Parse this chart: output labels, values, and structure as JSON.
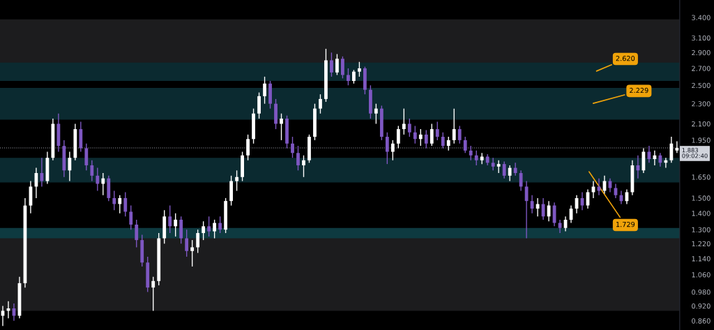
{
  "chart_data": {
    "type": "candlestick",
    "categories": [
      null,
      null,
      null,
      null,
      null,
      null,
      null,
      null,
      null,
      null,
      null,
      null,
      null,
      null,
      null,
      null,
      null,
      null,
      null,
      null,
      null,
      null,
      null,
      null,
      null,
      null,
      null,
      null,
      null,
      null,
      null,
      null,
      null,
      null,
      null,
      null,
      null,
      null,
      null,
      null,
      null,
      null,
      null,
      null,
      null,
      null,
      null,
      null,
      null,
      null,
      null,
      null,
      null,
      null,
      null,
      null,
      null,
      null,
      null,
      null,
      null,
      null,
      null,
      null,
      null,
      null,
      null,
      null,
      null,
      null,
      null,
      null,
      null,
      null,
      null,
      null,
      null,
      null,
      null,
      null,
      null,
      null,
      null,
      null,
      null,
      null,
      null,
      null,
      null,
      null,
      null,
      null,
      null,
      null,
      null,
      null,
      null,
      null,
      null,
      null,
      null,
      null,
      null,
      null,
      null,
      null,
      null,
      null,
      null,
      null,
      null,
      null,
      null,
      null,
      null,
      null,
      null,
      null,
      null,
      null,
      null,
      null
    ],
    "ohlc": [
      [
        0.88,
        0.92,
        0.84,
        0.9
      ],
      [
        0.9,
        0.94,
        0.87,
        0.91
      ],
      [
        0.91,
        0.93,
        0.86,
        0.88
      ],
      [
        0.88,
        1.05,
        0.87,
        1.02
      ],
      [
        1.02,
        1.5,
        1.0,
        1.45
      ],
      [
        1.45,
        1.62,
        1.4,
        1.58
      ],
      [
        1.58,
        1.72,
        1.5,
        1.68
      ],
      [
        1.68,
        1.8,
        1.58,
        1.62
      ],
      [
        1.62,
        1.85,
        1.6,
        1.8
      ],
      [
        1.8,
        2.15,
        1.78,
        2.1
      ],
      [
        2.1,
        2.2,
        1.85,
        1.9
      ],
      [
        1.9,
        1.95,
        1.65,
        1.7
      ],
      [
        1.7,
        1.85,
        1.62,
        1.8
      ],
      [
        1.8,
        2.1,
        1.78,
        2.05
      ],
      [
        2.05,
        2.12,
        1.85,
        1.88
      ],
      [
        1.88,
        1.92,
        1.7,
        1.74
      ],
      [
        1.74,
        1.78,
        1.62,
        1.66
      ],
      [
        1.66,
        1.72,
        1.55,
        1.6
      ],
      [
        1.6,
        1.68,
        1.52,
        1.64
      ],
      [
        1.64,
        1.66,
        1.48,
        1.5
      ],
      [
        1.5,
        1.55,
        1.42,
        1.46
      ],
      [
        1.46,
        1.52,
        1.4,
        1.5
      ],
      [
        1.5,
        1.54,
        1.38,
        1.41
      ],
      [
        1.41,
        1.45,
        1.3,
        1.33
      ],
      [
        1.33,
        1.36,
        1.2,
        1.24
      ],
      [
        1.24,
        1.27,
        1.1,
        1.12
      ],
      [
        1.12,
        1.15,
        0.98,
        1.0
      ],
      [
        1.0,
        1.05,
        0.9,
        1.03
      ],
      [
        1.03,
        1.28,
        1.01,
        1.25
      ],
      [
        1.25,
        1.42,
        1.22,
        1.38
      ],
      [
        1.38,
        1.45,
        1.28,
        1.32
      ],
      [
        1.32,
        1.4,
        1.26,
        1.36
      ],
      [
        1.36,
        1.38,
        1.22,
        1.25
      ],
      [
        1.25,
        1.3,
        1.15,
        1.18
      ],
      [
        1.18,
        1.24,
        1.1,
        1.2
      ],
      [
        1.2,
        1.3,
        1.17,
        1.28
      ],
      [
        1.28,
        1.35,
        1.24,
        1.32
      ],
      [
        1.32,
        1.38,
        1.26,
        1.29
      ],
      [
        1.29,
        1.36,
        1.25,
        1.34
      ],
      [
        1.34,
        1.38,
        1.28,
        1.3
      ],
      [
        1.3,
        1.5,
        1.28,
        1.48
      ],
      [
        1.48,
        1.66,
        1.45,
        1.62
      ],
      [
        1.62,
        1.7,
        1.55,
        1.65
      ],
      [
        1.65,
        1.85,
        1.62,
        1.82
      ],
      [
        1.82,
        2.0,
        1.78,
        1.96
      ],
      [
        1.96,
        2.25,
        1.92,
        2.2
      ],
      [
        2.2,
        2.42,
        2.15,
        2.38
      ],
      [
        2.38,
        2.6,
        2.3,
        2.52
      ],
      [
        2.52,
        2.55,
        2.25,
        2.3
      ],
      [
        2.3,
        2.35,
        2.05,
        2.1
      ],
      [
        2.1,
        2.2,
        1.95,
        2.15
      ],
      [
        2.15,
        2.18,
        1.88,
        1.92
      ],
      [
        1.92,
        1.98,
        1.8,
        1.84
      ],
      [
        1.84,
        1.9,
        1.7,
        1.74
      ],
      [
        1.74,
        1.82,
        1.65,
        1.78
      ],
      [
        1.78,
        2.0,
        1.76,
        1.98
      ],
      [
        1.98,
        2.3,
        1.95,
        2.25
      ],
      [
        2.25,
        2.4,
        2.2,
        2.35
      ],
      [
        2.35,
        2.95,
        2.32,
        2.8
      ],
      [
        2.8,
        2.9,
        2.6,
        2.65
      ],
      [
        2.65,
        2.88,
        2.62,
        2.82
      ],
      [
        2.82,
        2.85,
        2.58,
        2.62
      ],
      [
        2.62,
        2.7,
        2.5,
        2.55
      ],
      [
        2.55,
        2.68,
        2.52,
        2.66
      ],
      [
        2.66,
        2.78,
        2.6,
        2.7
      ],
      [
        2.7,
        2.72,
        2.4,
        2.45
      ],
      [
        2.45,
        2.5,
        2.15,
        2.2
      ],
      [
        2.2,
        2.3,
        2.1,
        2.25
      ],
      [
        2.25,
        2.28,
        1.95,
        1.98
      ],
      [
        1.98,
        2.02,
        1.75,
        1.85
      ],
      [
        1.85,
        1.95,
        1.78,
        1.92
      ],
      [
        1.92,
        2.08,
        1.88,
        2.05
      ],
      [
        2.05,
        2.25,
        2.0,
        2.1
      ],
      [
        2.1,
        2.15,
        1.98,
        2.02
      ],
      [
        2.02,
        2.08,
        1.92,
        1.96
      ],
      [
        1.96,
        2.05,
        1.9,
        2.0
      ],
      [
        2.0,
        2.04,
        1.88,
        1.92
      ],
      [
        1.92,
        2.1,
        1.9,
        2.05
      ],
      [
        2.05,
        2.12,
        1.95,
        1.98
      ],
      [
        1.98,
        2.02,
        1.88,
        1.9
      ],
      [
        1.9,
        1.98,
        1.86,
        1.95
      ],
      [
        1.95,
        2.25,
        1.92,
        2.05
      ],
      [
        2.05,
        2.08,
        1.92,
        1.95
      ],
      [
        1.95,
        1.98,
        1.84,
        1.86
      ],
      [
        1.86,
        1.9,
        1.78,
        1.82
      ],
      [
        1.82,
        1.86,
        1.74,
        1.78
      ],
      [
        1.78,
        1.84,
        1.75,
        1.81
      ],
      [
        1.81,
        1.83,
        1.74,
        1.76
      ],
      [
        1.76,
        1.8,
        1.7,
        1.73
      ],
      [
        1.73,
        1.78,
        1.68,
        1.75
      ],
      [
        1.75,
        1.77,
        1.64,
        1.66
      ],
      [
        1.66,
        1.74,
        1.62,
        1.72
      ],
      [
        1.72,
        1.76,
        1.66,
        1.68
      ],
      [
        1.68,
        1.7,
        1.55,
        1.58
      ],
      [
        1.58,
        1.62,
        1.25,
        1.48
      ],
      [
        1.48,
        1.52,
        1.4,
        1.43
      ],
      [
        1.43,
        1.5,
        1.38,
        1.46
      ],
      [
        1.46,
        1.5,
        1.36,
        1.38
      ],
      [
        1.38,
        1.48,
        1.35,
        1.45
      ],
      [
        1.45,
        1.47,
        1.32,
        1.34
      ],
      [
        1.34,
        1.36,
        1.28,
        1.31
      ],
      [
        1.31,
        1.38,
        1.29,
        1.36
      ],
      [
        1.36,
        1.45,
        1.34,
        1.43
      ],
      [
        1.43,
        1.52,
        1.4,
        1.5
      ],
      [
        1.5,
        1.54,
        1.42,
        1.45
      ],
      [
        1.45,
        1.56,
        1.43,
        1.54
      ],
      [
        1.54,
        1.62,
        1.5,
        1.58
      ],
      [
        1.58,
        1.64,
        1.52,
        1.55
      ],
      [
        1.55,
        1.66,
        1.53,
        1.62
      ],
      [
        1.62,
        1.64,
        1.54,
        1.57
      ],
      [
        1.57,
        1.6,
        1.5,
        1.52
      ],
      [
        1.52,
        1.55,
        1.46,
        1.48
      ],
      [
        1.48,
        1.56,
        1.46,
        1.54
      ],
      [
        1.54,
        1.78,
        1.52,
        1.74
      ],
      [
        1.74,
        1.82,
        1.64,
        1.7
      ],
      [
        1.7,
        1.88,
        1.68,
        1.85
      ],
      [
        1.85,
        1.9,
        1.76,
        1.79
      ],
      [
        1.79,
        1.86,
        1.74,
        1.82
      ],
      [
        1.82,
        1.84,
        1.73,
        1.76
      ],
      [
        1.76,
        1.8,
        1.72,
        1.78
      ],
      [
        1.78,
        1.98,
        1.76,
        1.92
      ],
      [
        1.86,
        1.94,
        1.84,
        1.883
      ]
    ],
    "colors": [
      "#ffffff",
      "#ffffff",
      "#7e57c2",
      "#ffffff",
      "#ffffff",
      "#ffffff",
      "#ffffff",
      "#7e57c2",
      "#ffffff",
      "#ffffff",
      "#7e57c2",
      "#7e57c2",
      "#ffffff",
      "#ffffff",
      "#7e57c2",
      "#7e57c2",
      "#7e57c2",
      "#7e57c2",
      "#ffffff",
      "#7e57c2",
      "#7e57c2",
      "#ffffff",
      "#7e57c2",
      "#7e57c2",
      "#7e57c2",
      "#7e57c2",
      "#7e57c2",
      "#ffffff",
      "#ffffff",
      "#ffffff",
      "#7e57c2",
      "#ffffff",
      "#7e57c2",
      "#7e57c2",
      "#ffffff",
      "#ffffff",
      "#ffffff",
      "#7e57c2",
      "#ffffff",
      "#7e57c2",
      "#ffffff",
      "#ffffff",
      "#ffffff",
      "#ffffff",
      "#ffffff",
      "#ffffff",
      "#ffffff",
      "#ffffff",
      "#7e57c2",
      "#7e57c2",
      "#ffffff",
      "#7e57c2",
      "#7e57c2",
      "#7e57c2",
      "#ffffff",
      "#ffffff",
      "#ffffff",
      "#ffffff",
      "#ffffff",
      "#7e57c2",
      "#ffffff",
      "#7e57c2",
      "#7e57c2",
      "#ffffff",
      "#ffffff",
      "#7e57c2",
      "#7e57c2",
      "#ffffff",
      "#7e57c2",
      "#7e57c2",
      "#ffffff",
      "#ffffff",
      "#ffffff",
      "#7e57c2",
      "#7e57c2",
      "#ffffff",
      "#7e57c2",
      "#ffffff",
      "#7e57c2",
      "#7e57c2",
      "#ffffff",
      "#ffffff",
      "#7e57c2",
      "#7e57c2",
      "#7e57c2",
      "#7e57c2",
      "#ffffff",
      "#7e57c2",
      "#7e57c2",
      "#ffffff",
      "#7e57c2",
      "#ffffff",
      "#7e57c2",
      "#7e57c2",
      "#7e57c2",
      "#7e57c2",
      "#ffffff",
      "#7e57c2",
      "#ffffff",
      "#7e57c2",
      "#7e57c2",
      "#ffffff",
      "#ffffff",
      "#ffffff",
      "#7e57c2",
      "#ffffff",
      "#ffffff",
      "#7e57c2",
      "#ffffff",
      "#7e57c2",
      "#7e57c2",
      "#7e57c2",
      "#ffffff",
      "#ffffff",
      "#7e57c2",
      "#ffffff",
      "#7e57c2",
      "#ffffff",
      "#7e57c2",
      "#ffffff",
      "#ffffff",
      "#ffffff"
    ],
    "log": "y",
    "ylim": [
      0.825,
      3.68
    ],
    "yticks": [
      {
        "value": 0.86,
        "label": "0.860"
      },
      {
        "value": 0.92,
        "label": "0.920"
      },
      {
        "value": 0.98,
        "label": "0.980"
      },
      {
        "value": 1.06,
        "label": "1.060"
      },
      {
        "value": 1.14,
        "label": "1.140"
      },
      {
        "value": 1.22,
        "label": "1.220"
      },
      {
        "value": 1.3,
        "label": "1.300"
      },
      {
        "value": 1.4,
        "label": "1.400"
      },
      {
        "value": 1.5,
        "label": "1.500"
      },
      {
        "value": 1.65,
        "label": "1.650"
      },
      {
        "value": 1.95,
        "label": "1.950"
      },
      {
        "value": 2.1,
        "label": "2.100"
      },
      {
        "value": 2.3,
        "label": "2.300"
      },
      {
        "value": 2.5,
        "label": "2.500"
      },
      {
        "value": 2.7,
        "label": "2.700"
      },
      {
        "value": 2.9,
        "label": "2.900"
      },
      {
        "value": 3.1,
        "label": "3.100"
      },
      {
        "value": 3.4,
        "label": "3.400"
      }
    ],
    "tick_labels": "y",
    "grid": false,
    "bands": [
      {
        "axis": "y",
        "from": 2.75,
        "to": 3.37,
        "color": "#1c1c1e"
      },
      {
        "axis": "y",
        "from": 0.9,
        "to": 1.3,
        "color": "#1c1c1e"
      },
      {
        "axis": "y",
        "from": 2.55,
        "to": 2.77,
        "color": "#0b2a30",
        "label": "2.620"
      },
      {
        "axis": "y",
        "from": 2.14,
        "to": 2.47,
        "color": "#0b2a30",
        "label": "2.229"
      },
      {
        "axis": "y",
        "from": 1.61,
        "to": 1.8,
        "color": "#0b2a30",
        "label": "1.729"
      },
      {
        "axis": "y",
        "from": 1.25,
        "to": 1.31,
        "color": "#0e3a40"
      }
    ],
    "ref_lines": [
      {
        "axis": "y",
        "value": 1.883,
        "label": "1.883\n09:02:40",
        "color": "#9598a1",
        "line_style": "dotted"
      }
    ]
  }
}
